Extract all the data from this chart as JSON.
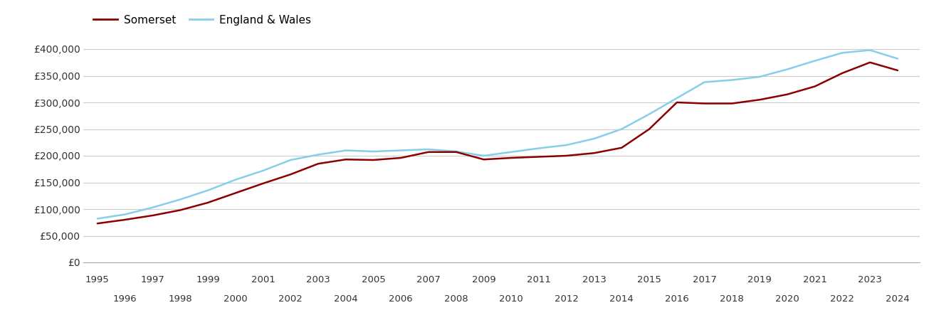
{
  "somerset": {
    "years": [
      1995,
      1996,
      1997,
      1998,
      1999,
      2000,
      2001,
      2002,
      2003,
      2004,
      2005,
      2006,
      2007,
      2008,
      2009,
      2010,
      2011,
      2012,
      2013,
      2014,
      2015,
      2016,
      2017,
      2018,
      2019,
      2020,
      2021,
      2022,
      2023,
      2024
    ],
    "values": [
      73000,
      80000,
      88000,
      98000,
      112000,
      130000,
      148000,
      165000,
      185000,
      193000,
      192000,
      196000,
      207000,
      207000,
      193000,
      196000,
      198000,
      200000,
      205000,
      215000,
      250000,
      300000,
      298000,
      298000,
      305000,
      315000,
      330000,
      355000,
      375000,
      360000
    ]
  },
  "england_wales": {
    "years": [
      1995,
      1996,
      1997,
      1998,
      1999,
      2000,
      2001,
      2002,
      2003,
      2004,
      2005,
      2006,
      2007,
      2008,
      2009,
      2010,
      2011,
      2012,
      2013,
      2014,
      2015,
      2016,
      2017,
      2018,
      2019,
      2020,
      2021,
      2022,
      2023,
      2024
    ],
    "values": [
      82000,
      90000,
      103000,
      118000,
      135000,
      155000,
      172000,
      192000,
      202000,
      210000,
      208000,
      210000,
      212000,
      208000,
      200000,
      207000,
      214000,
      220000,
      232000,
      250000,
      278000,
      308000,
      338000,
      342000,
      348000,
      362000,
      378000,
      393000,
      398000,
      382000
    ]
  },
  "somerset_color": "#8B0000",
  "england_wales_color": "#87CEEB",
  "background_color": "#ffffff",
  "grid_color": "#cccccc",
  "ylim": [
    0,
    420000
  ],
  "yticks": [
    0,
    50000,
    100000,
    150000,
    200000,
    250000,
    300000,
    350000,
    400000
  ],
  "ytick_labels": [
    "£0",
    "£50,000",
    "£100,000",
    "£150,000",
    "£200,000",
    "£250,000",
    "£300,000",
    "£350,000",
    "£400,000"
  ],
  "xticks_odd": [
    1995,
    1997,
    1999,
    2001,
    2003,
    2005,
    2007,
    2009,
    2011,
    2013,
    2015,
    2017,
    2019,
    2021,
    2023
  ],
  "xticks_even": [
    1996,
    1998,
    2000,
    2002,
    2004,
    2006,
    2008,
    2010,
    2012,
    2014,
    2016,
    2018,
    2020,
    2022,
    2024
  ],
  "line_width": 1.8,
  "legend_labels": [
    "Somerset",
    "England & Wales"
  ],
  "legend_colors": [
    "#8B0000",
    "#87CEEB"
  ],
  "xlim": [
    1994.5,
    2024.8
  ]
}
